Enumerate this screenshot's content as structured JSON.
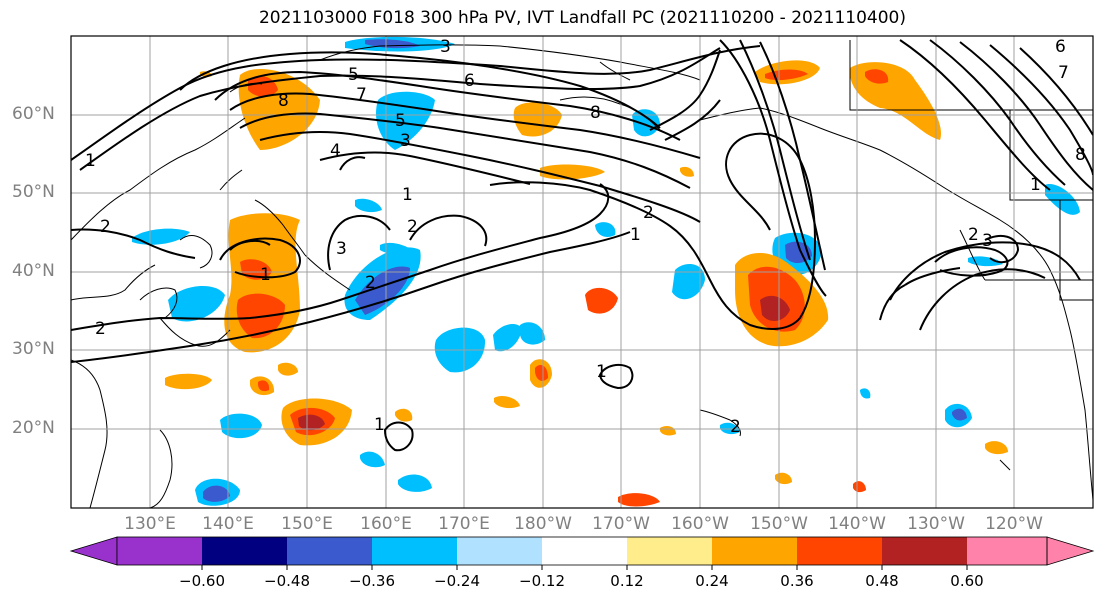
{
  "title": "2021103000 F018 300 hPa PV, IVT Landfall PC (2021110200 - 2021110400)",
  "map": {
    "lat_labels": [
      "60°N",
      "50°N",
      "40°N",
      "30°N",
      "20°N"
    ],
    "lon_labels": [
      "130°E",
      "140°E",
      "150°E",
      "160°E",
      "170°E",
      "180°W",
      "170°W",
      "160°W",
      "150°W",
      "140°W",
      "130°W",
      "120°W"
    ],
    "contour_labels": [
      "5",
      "6",
      "7",
      "8",
      "4",
      "3",
      "8",
      "3",
      "5",
      "1",
      "2",
      "2",
      "1",
      "3",
      "2",
      "2",
      "2",
      "1",
      "1",
      "1",
      "2",
      "3",
      "2",
      "6",
      "7",
      "8",
      "1",
      "1"
    ]
  },
  "colorbar": {
    "ticks": [
      "−0.60",
      "−0.48",
      "−0.36",
      "−0.24",
      "−0.12",
      "0.12",
      "0.24",
      "0.36",
      "0.48",
      "0.60"
    ],
    "colors": [
      "#9932cc",
      "#000080",
      "#3a5acd",
      "#00bfff",
      "#b0e2ff",
      "#ffffff",
      "#ffec8b",
      "#ffa500",
      "#ff4500",
      "#b22222",
      "#ff82ab"
    ]
  }
}
